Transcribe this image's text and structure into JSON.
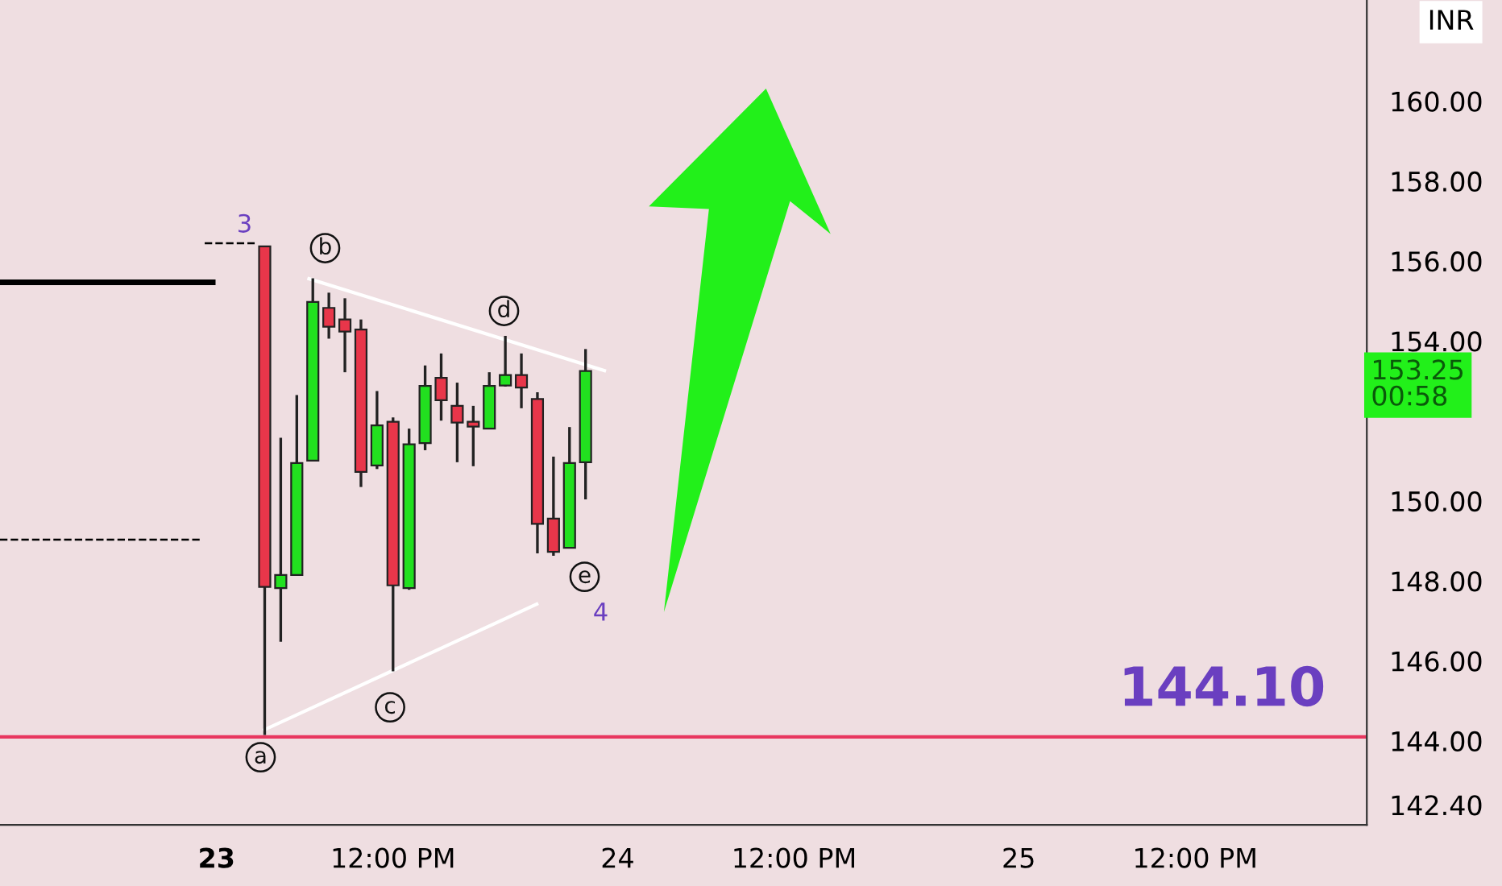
{
  "chart_data": {
    "type": "candlestick",
    "ylabel": "INR",
    "categories": [
      null,
      null,
      null,
      null,
      null,
      null,
      null,
      null,
      null,
      null,
      null,
      null,
      null,
      "23",
      null,
      null,
      null,
      null,
      null,
      null,
      null,
      null,
      null,
      null,
      "12:00 PM",
      null,
      null,
      null,
      null,
      null,
      null,
      null,
      null,
      null,
      null,
      null,
      null,
      null,
      "24",
      null,
      null,
      null,
      null,
      null,
      null,
      null,
      null,
      null,
      null,
      "12:00 PM",
      null,
      null,
      null,
      null,
      null,
      null,
      null,
      null,
      null,
      null,
      null,
      null,
      null,
      "25",
      null,
      null,
      null,
      null,
      null,
      null,
      null,
      null,
      null,
      null,
      "12:00 PM",
      null,
      null,
      null,
      null,
      null,
      null,
      null,
      null,
      null,
      null
    ],
    "ohlc": [
      null,
      null,
      null,
      null,
      null,
      null,
      null,
      null,
      null,
      null,
      null,
      null,
      null,
      null,
      null,
      null,
      [
        156.37,
        156.37,
        144.15,
        147.85
      ],
      [
        147.82,
        151.58,
        146.48,
        148.15
      ],
      [
        148.15,
        152.65,
        148.15,
        150.95
      ],
      [
        151.01,
        155.57,
        151.01,
        154.98
      ],
      [
        154.83,
        155.21,
        154.06,
        154.36
      ],
      [
        154.54,
        155.07,
        153.22,
        154.24
      ],
      [
        154.29,
        154.54,
        150.35,
        150.73
      ],
      [
        150.89,
        152.75,
        150.8,
        151.89
      ],
      [
        151.98,
        152.09,
        145.74,
        147.89
      ],
      [
        147.82,
        151.81,
        147.78,
        151.42
      ],
      [
        151.45,
        153.39,
        151.27,
        152.88
      ],
      [
        153.08,
        153.69,
        152.01,
        152.52
      ],
      [
        152.38,
        152.96,
        150.97,
        151.96
      ],
      [
        151.98,
        152.38,
        150.87,
        151.86
      ],
      [
        151.81,
        153.22,
        151.81,
        152.88
      ],
      [
        152.89,
        154.13,
        152.86,
        153.15
      ],
      [
        153.15,
        153.69,
        152.32,
        152.84
      ],
      [
        152.55,
        152.72,
        148.69,
        149.43
      ],
      [
        149.56,
        151.11,
        148.63,
        148.73
      ],
      [
        148.83,
        151.85,
        148.83,
        150.95
      ],
      [
        150.97,
        153.8,
        150.04,
        153.25
      ],
      null,
      null,
      null,
      null,
      null,
      null,
      null,
      null,
      null,
      null,
      null,
      null,
      null,
      null,
      null,
      null,
      null,
      null,
      null,
      null,
      null,
      null,
      null,
      null,
      null,
      null,
      null,
      null,
      null,
      null,
      null,
      null,
      null,
      null,
      null,
      null,
      null,
      null,
      null,
      null,
      null,
      null,
      null,
      null,
      null,
      null,
      null,
      null
    ],
    "colors": [
      null,
      null,
      null,
      null,
      null,
      null,
      null,
      null,
      null,
      null,
      null,
      null,
      null,
      null,
      null,
      null,
      "#e8364a",
      "#22e01f",
      "#22e01f",
      "#22e01f",
      "#e8364a",
      "#e8364a",
      "#e8364a",
      "#22e01f",
      "#e8364a",
      "#22e01f",
      "#22e01f",
      "#e8364a",
      "#e8364a",
      "#e8364a",
      "#22e01f",
      "#22e01f",
      "#e8364a",
      "#e8364a",
      "#e8364a",
      "#22e01f",
      "#22e01f",
      null,
      null,
      null,
      null,
      null,
      null,
      null,
      null,
      null,
      null,
      null,
      null,
      null,
      null,
      null,
      null,
      null,
      null,
      null,
      null,
      null,
      null,
      null,
      null,
      null,
      null,
      null,
      null,
      null,
      null,
      null,
      null,
      null,
      null,
      null,
      null,
      null,
      null,
      null,
      null,
      null,
      null,
      null,
      null,
      null,
      null,
      null,
      null
    ],
    "ref_lines": [
      {
        "axis": "y",
        "value": 144.1,
        "label": "144.10",
        "color": "#e8365f"
      },
      {
        "axis": "y",
        "value": 155.47,
        "color": "#000000"
      }
    ],
    "annotations": [
      "3",
      "b",
      "d",
      "e",
      "c",
      "a",
      "4",
      "153.25\n00:58"
    ],
    "ylim": [
      141.9,
      162.53
    ],
    "yticks": [
      {
        "value": 142.4,
        "label": "142.40"
      },
      {
        "value": 144,
        "label": "144.00"
      },
      {
        "value": 146,
        "label": "146.00"
      },
      {
        "value": 148,
        "label": "148.00"
      },
      {
        "value": 150,
        "label": "150.00"
      },
      {
        "value": 154,
        "label": "154.00"
      },
      {
        "value": 156,
        "label": "156.00"
      },
      {
        "value": 158,
        "label": "158.00"
      },
      {
        "value": 160,
        "label": "160.00"
      }
    ],
    "grid": false
  }
}
